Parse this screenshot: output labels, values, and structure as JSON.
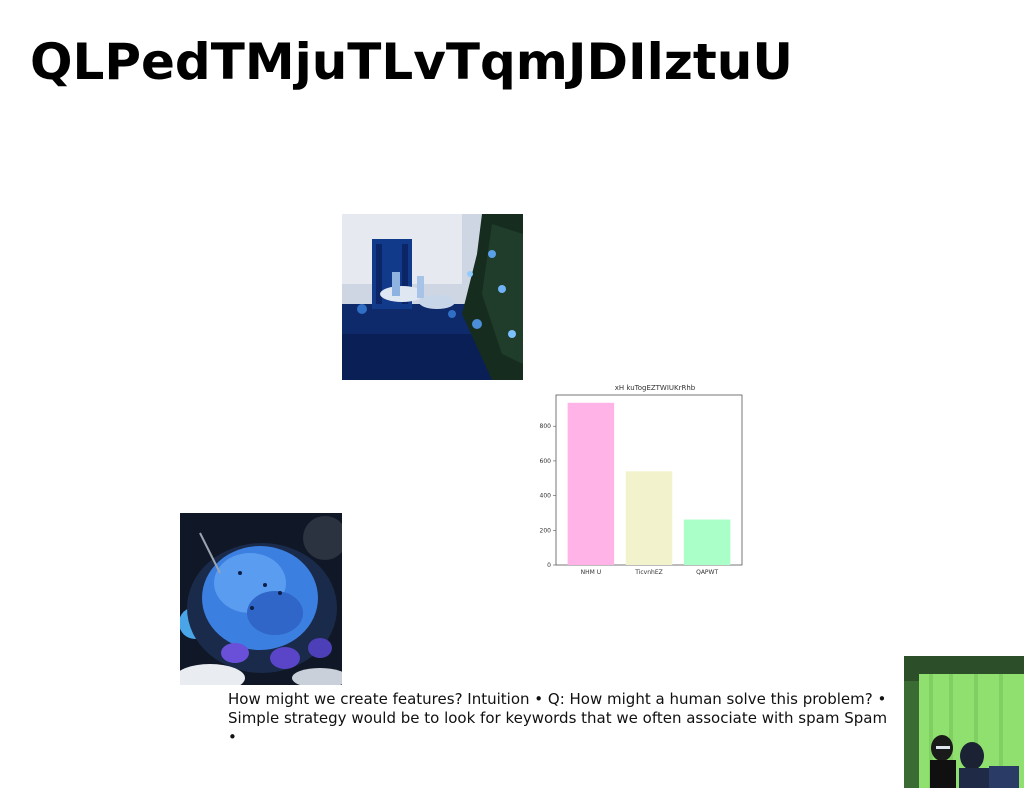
{
  "slide": {
    "title": "QLPedTMjuTLvTqmJDIlztuU",
    "body_text": "How might we create features? Intuition • Q: How might a human solve this problem? • Simple strategy would be to look for keywords that we often associate with spam Spam •"
  },
  "chart_data": {
    "type": "bar",
    "title": "xH kuTogEZTWIUKrRhb",
    "categories": [
      "NHM U",
      "TicvnhEZ",
      "QAPWT"
    ],
    "values": [
      935,
      540,
      262
    ],
    "colors": [
      "#ffb3e6",
      "#f2f2cc",
      "#aaffc8"
    ],
    "xlabel": "",
    "ylabel": "",
    "ylim": [
      0,
      980
    ],
    "yticks": [
      0,
      200,
      400,
      600,
      800
    ],
    "grid": false
  }
}
